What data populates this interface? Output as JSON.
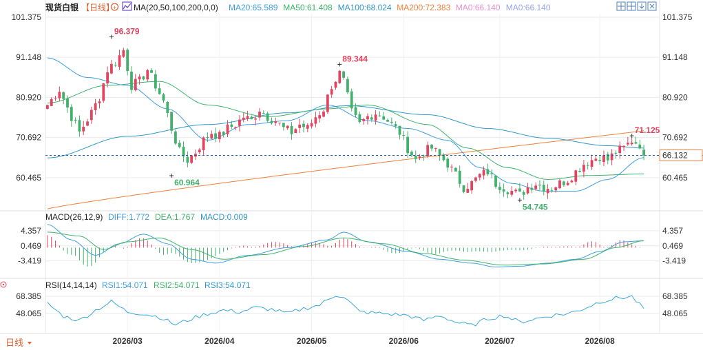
{
  "header": {
    "title": "现货白银",
    "period_label": "【日线】",
    "ma_label": "MA(20,50,100,200,0,0)",
    "ma_values": [
      {
        "text": "MA20:65.589",
        "color": "#3f9fde"
      },
      {
        "text": "MA50:61.408",
        "color": "#3db36b"
      },
      {
        "text": "MA100:68.024",
        "color": "#2f98c8"
      },
      {
        "text": "MA200:72.383",
        "color": "#f0803c"
      },
      {
        "text": "MA0:66.140",
        "color": "#e88fd0"
      },
      {
        "text": "MA0:66.140",
        "color": "#9aa4e8"
      }
    ],
    "icons": [
      "crosshair-icon",
      "layout-icon",
      "download-icon",
      "close-icon"
    ]
  },
  "macd_header": {
    "label": "MACD(26,12,9)",
    "diff": "DIFF:1.772",
    "dea": "DEA:1.767",
    "macd": "MACD:0.009"
  },
  "rsi_header": {
    "label": "RSI(14,14,14)",
    "rsi1": "RSI1:54.071",
    "rsi2": "RSI2:54.071",
    "rsi3": "RSI3:54.071"
  },
  "footer": {
    "period_button": "日线"
  },
  "colors": {
    "up": "#e0445e",
    "down": "#41b06a",
    "ma20": "#3f9fde",
    "ma50": "#3db36b",
    "ma100": "#2f98c8",
    "ma200": "#f0803c",
    "price_line": "#1f5fb0",
    "rsi": "#3aa8d8",
    "grid": "#eaeaea"
  },
  "chart_data": [
    {
      "type": "candlestick",
      "title": "现货白银",
      "ylim": [
        52,
        104
      ],
      "y_ticks": [
        "101.375",
        "91.148",
        "80.920",
        "70.692",
        "60.465"
      ],
      "x_ticks": [
        "2026/03",
        "2026/04",
        "2026/05",
        "2026/06",
        "2026/07",
        "2026/08"
      ],
      "current_price": "66.132",
      "annotations": [
        {
          "text": "96.379",
          "value": 96.379,
          "type": "high"
        },
        {
          "text": "60.964",
          "value": 60.964,
          "type": "low"
        },
        {
          "text": "89.344",
          "value": 89.344,
          "type": "high"
        },
        {
          "text": "54.745",
          "value": 54.745,
          "type": "low"
        },
        {
          "text": "71.125",
          "value": 71.125,
          "type": "high"
        }
      ],
      "series": [
        {
          "name": "MA20",
          "value_last": 65.589
        },
        {
          "name": "MA50",
          "value_last": 61.408
        },
        {
          "name": "MA100",
          "value_last": 68.024
        },
        {
          "name": "MA200",
          "value_last": 72.383
        }
      ]
    },
    {
      "type": "macd",
      "title": "MACD(26,12,9)",
      "ylim": [
        -6.5,
        7.0
      ],
      "y_ticks": [
        "4.357",
        "0.469",
        "-3.419"
      ],
      "series": [
        {
          "name": "DIFF",
          "value_last": 1.772
        },
        {
          "name": "DEA",
          "value_last": 1.767
        },
        {
          "name": "MACD",
          "value_last": 0.009
        }
      ]
    },
    {
      "type": "line",
      "title": "RSI(14,14,14)",
      "ylim": [
        28,
        78
      ],
      "y_ticks": [
        "68.385",
        "48.065"
      ],
      "series": [
        {
          "name": "RSI1",
          "value_last": 54.071
        },
        {
          "name": "RSI2",
          "value_last": 54.071
        },
        {
          "name": "RSI3",
          "value_last": 54.071
        }
      ]
    }
  ]
}
